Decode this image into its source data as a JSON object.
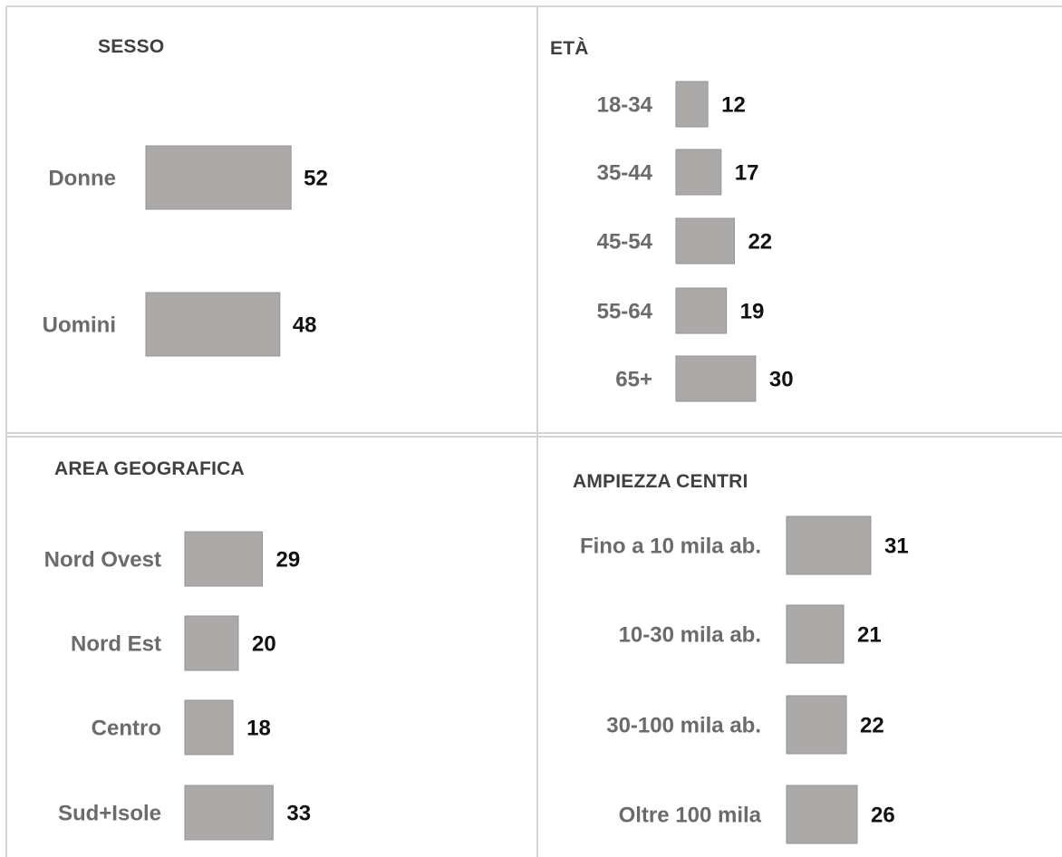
{
  "colors": {
    "bar": "#acaaa9",
    "bar_border": "#959392",
    "grid": "#d4d4d4",
    "label": "#6b6b6b",
    "value": "#111111",
    "title": "#404040"
  },
  "chart_data": [
    {
      "type": "bar",
      "orientation": "horizontal",
      "title": "SESSO",
      "categories": [
        "Donne",
        "Uomini"
      ],
      "values": [
        52,
        48
      ]
    },
    {
      "type": "bar",
      "orientation": "horizontal",
      "title": "ETÀ",
      "categories": [
        "18-34",
        "35-44",
        "45-54",
        "55-64",
        "65+"
      ],
      "values": [
        12,
        17,
        22,
        19,
        30
      ]
    },
    {
      "type": "bar",
      "orientation": "horizontal",
      "title": "AREA GEOGRAFICA",
      "categories": [
        "Nord Ovest",
        "Nord Est",
        "Centro",
        "Sud+Isole"
      ],
      "values": [
        29,
        20,
        18,
        33
      ]
    },
    {
      "type": "bar",
      "orientation": "horizontal",
      "title": "AMPIEZZA CENTRI",
      "categories": [
        "Fino a 10 mila ab.",
        "10-30 mila ab.",
        "30-100 mila ab.",
        "Oltre 100 mila"
      ],
      "values": [
        31,
        21,
        22,
        26
      ]
    }
  ]
}
